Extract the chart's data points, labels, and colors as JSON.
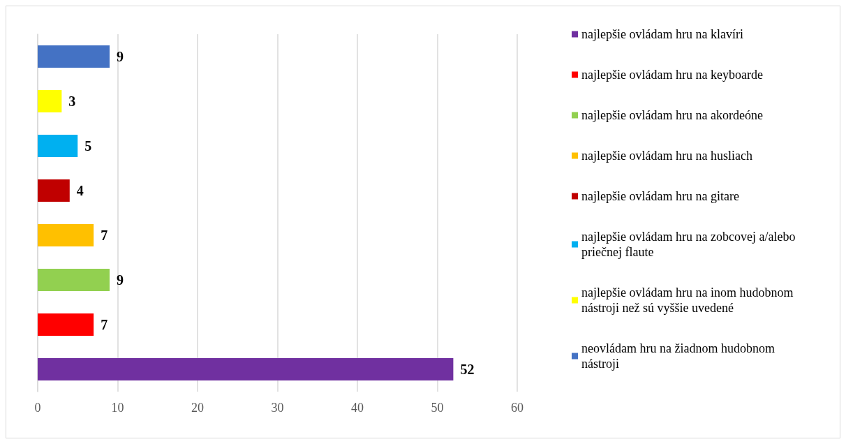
{
  "chart_data": {
    "type": "bar",
    "orientation": "horizontal",
    "stacked": true,
    "categories": [
      null,
      null,
      null,
      null,
      null,
      null,
      null,
      null
    ],
    "series": [
      {
        "name": "najlepšie ovládam hru na klavíri",
        "color": "#7030a0",
        "values": [
          null,
          null,
          null,
          null,
          null,
          null,
          null,
          52
        ]
      },
      {
        "name": "najlepšie ovládam hru na keyboarde",
        "color": "#ff0000",
        "values": [
          null,
          null,
          null,
          null,
          null,
          null,
          7,
          null
        ]
      },
      {
        "name": "najlepšie ovládam hru na akordeóne",
        "color": "#92d050",
        "values": [
          null,
          null,
          null,
          null,
          null,
          9,
          null,
          null
        ]
      },
      {
        "name": "najlepšie ovládam hru na husliach",
        "color": "#ffc000",
        "values": [
          null,
          null,
          null,
          null,
          7,
          null,
          null,
          null
        ]
      },
      {
        "name": "najlepšie ovládam hru na gitare",
        "color": "#c00000",
        "values": [
          null,
          null,
          null,
          4,
          null,
          null,
          null,
          null
        ]
      },
      {
        "name": "najlepšie ovládam hru na zobcovej a/alebo priečnej flaute",
        "color": "#00b0f0",
        "values": [
          null,
          null,
          5,
          null,
          null,
          null,
          null,
          null
        ]
      },
      {
        "name": "najlepšie ovládam hru na inom hudobnom nástroji než sú vyššie uvedené",
        "color": "#ffff00",
        "values": [
          null,
          3,
          null,
          null,
          null,
          null,
          null,
          null
        ]
      },
      {
        "name": "neovládam hru na žiadnom hudobnom nástroji",
        "color": "#4472c4",
        "values": [
          9,
          null,
          null,
          null,
          null,
          null,
          null,
          null
        ]
      }
    ],
    "xlim": [
      0,
      60
    ],
    "xticks": [
      0,
      10,
      20,
      30,
      40,
      50,
      60
    ],
    "grid": "x",
    "legend": "right",
    "data_labels": true
  }
}
